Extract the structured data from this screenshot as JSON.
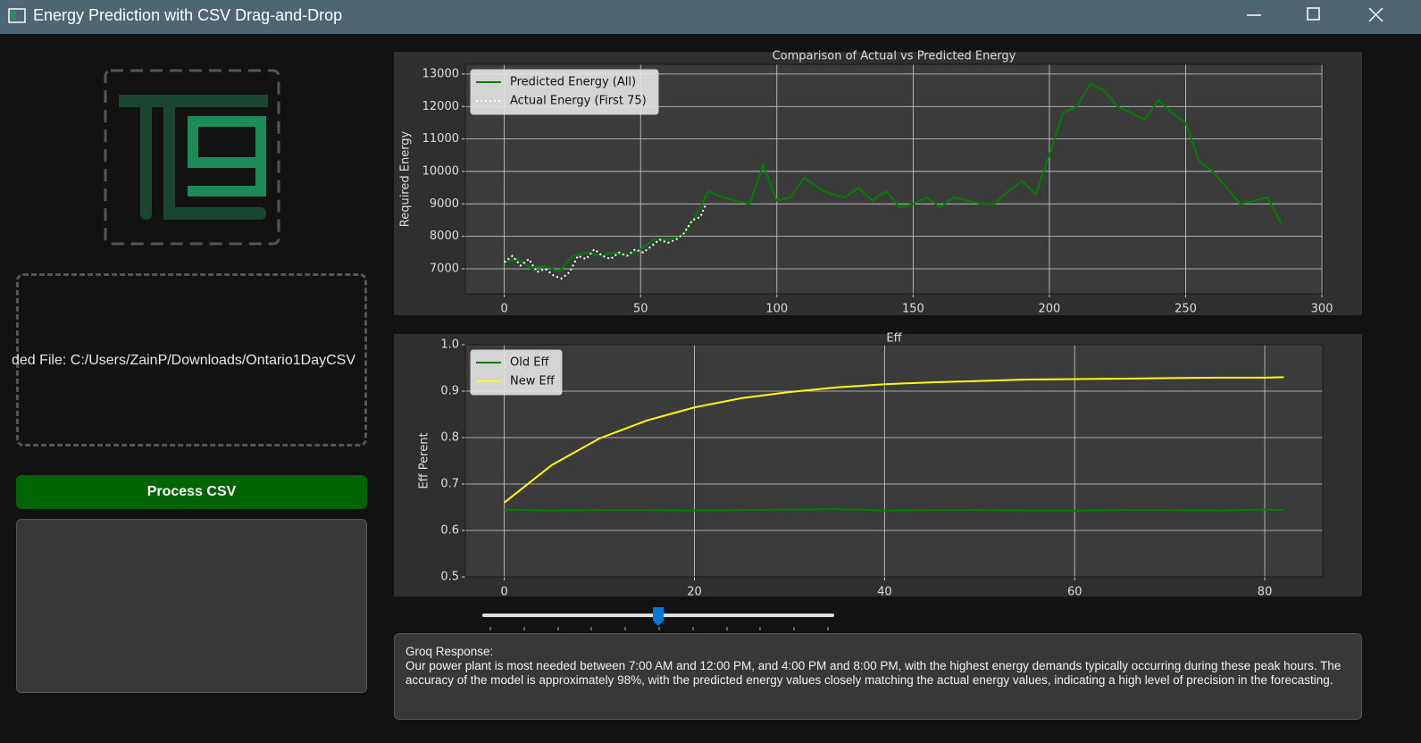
{
  "window": {
    "title": "Energy Prediction with CSV Drag-and-Drop"
  },
  "upload": {
    "text": "ded File: C:/Users/ZainP/Downloads/Ontario1DayCSV"
  },
  "button": {
    "label": "Process CSV"
  },
  "response": {
    "heading": "Groq Response:",
    "text": "Our power plant is most needed between 7:00 AM and 12:00 PM, and 4:00 PM and 8:00 PM, with the highest energy demands typically occurring during these peak hours. The accuracy of the model is approximately 98%, with the predicted energy values closely matching the actual energy values, indicating a high level of precision in the forecasting."
  },
  "chart_data": [
    {
      "type": "line",
      "title": "Comparison of Actual vs Predicted Energy",
      "y_label": "Required Energy",
      "xlim": [
        -14.3,
        300.3
      ],
      "ylim": [
        6230,
        13300
      ],
      "xticks": [
        0,
        50,
        100,
        150,
        200,
        250,
        300
      ],
      "yticks": [
        7000,
        8000,
        9000,
        10000,
        11000,
        12000,
        13000
      ],
      "grid": true,
      "legend": "upper left",
      "series": [
        {
          "name": "Predicted Energy (All)",
          "color": "#008000",
          "linestyle": "solid",
          "x": [
            0,
            5,
            10,
            15,
            20,
            25,
            30,
            35,
            40,
            45,
            50,
            55,
            60,
            65,
            70,
            75,
            80,
            85,
            90,
            95,
            100,
            105,
            110,
            115,
            120,
            125,
            130,
            135,
            140,
            145,
            150,
            155,
            160,
            165,
            170,
            175,
            180,
            185,
            190,
            195,
            200,
            205,
            210,
            215,
            220,
            225,
            230,
            235,
            240,
            245,
            250,
            255,
            260,
            265,
            270,
            275,
            280,
            285
          ],
          "values": [
            7200,
            7300,
            7000,
            7100,
            6900,
            7400,
            7500,
            7400,
            7500,
            7400,
            7600,
            7900,
            7900,
            8000,
            8600,
            9400,
            9200,
            9100,
            9000,
            10200,
            9100,
            9200,
            9800,
            9500,
            9300,
            9200,
            9500,
            9100,
            9400,
            8900,
            9000,
            9200,
            8900,
            9200,
            9100,
            9000,
            9000,
            9400,
            9700,
            9300,
            10500,
            11800,
            12000,
            12700,
            12500,
            12000,
            11800,
            11600,
            12200,
            11800,
            11500,
            10300,
            10000,
            9500,
            9000,
            9100,
            9200,
            8400
          ]
        },
        {
          "name": "Actual Energy (First 75)",
          "color": "#ffffff",
          "linestyle": "dotted",
          "x": [
            0,
            3,
            6,
            9,
            12,
            15,
            18,
            21,
            24,
            27,
            30,
            33,
            36,
            39,
            42,
            45,
            48,
            51,
            54,
            57,
            60,
            63,
            66,
            69,
            72,
            74
          ],
          "values": [
            7200,
            7400,
            7100,
            7300,
            6900,
            7000,
            6800,
            6700,
            6900,
            7400,
            7300,
            7600,
            7400,
            7300,
            7500,
            7400,
            7600,
            7500,
            7700,
            7900,
            7800,
            7900,
            8100,
            8500,
            8600,
            9000
          ]
        }
      ]
    },
    {
      "type": "line",
      "title": "Eff",
      "y_label": "Eff Perent",
      "xlim": [
        -4.1,
        86.1
      ],
      "ylim": [
        0.5,
        1.0
      ],
      "xticks": [
        0,
        20,
        40,
        60,
        80
      ],
      "yticks": [
        0.5,
        0.6,
        0.7,
        0.8,
        0.9,
        {
          "value": 1,
          "label": "1.0"
        }
      ],
      "grid": true,
      "legend": "upper left",
      "series": [
        {
          "name": "Old Eff",
          "color": "#008000",
          "linestyle": "solid",
          "x": [
            0,
            5,
            10,
            15,
            20,
            25,
            30,
            35,
            40,
            45,
            50,
            55,
            60,
            65,
            70,
            75,
            80,
            82
          ],
          "values": [
            0.645,
            0.643,
            0.644,
            0.644,
            0.643,
            0.644,
            0.645,
            0.646,
            0.643,
            0.644,
            0.644,
            0.643,
            0.643,
            0.644,
            0.644,
            0.643,
            0.645,
            0.644
          ]
        },
        {
          "name": "New Eff",
          "color": "#ffff00",
          "linestyle": "solid",
          "x": [
            0,
            5,
            10,
            15,
            20,
            25,
            30,
            35,
            40,
            45,
            50,
            55,
            60,
            65,
            70,
            75,
            80,
            82
          ],
          "values": [
            0.66,
            0.741,
            0.798,
            0.837,
            0.865,
            0.885,
            0.898,
            0.908,
            0.915,
            0.919,
            0.922,
            0.925,
            0.926,
            0.927,
            0.928,
            0.929,
            0.929,
            0.93
          ]
        }
      ]
    }
  ]
}
